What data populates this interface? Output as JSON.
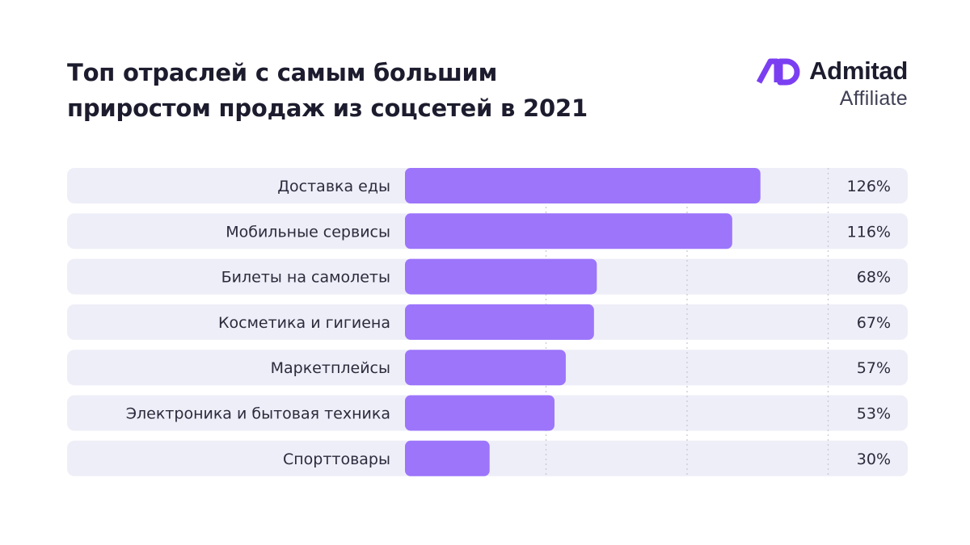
{
  "header": {
    "title_line1": "Топ отраслей с самым большим",
    "title_line2": "приростом продаж из соцсетей в 2021"
  },
  "brand": {
    "name": "Admitad",
    "sub": "Affiliate",
    "logo_color": "#7b3ff2"
  },
  "colors": {
    "bar": "#9c75fb",
    "row_bg": "#eeeef8",
    "grid": "#c9c9d6",
    "text": "#2b2b3d"
  },
  "chart_data": {
    "type": "bar",
    "orientation": "horizontal",
    "title": "Топ отраслей с самым большим приростом продаж из соцсетей в 2021",
    "categories": [
      "Доставка еды",
      "Мобильные сервисы",
      "Билеты на самолеты",
      "Косметика и гигиена",
      "Маркетплейсы",
      "Электроника и бытовая техника",
      "Спорттовары"
    ],
    "values": [
      126,
      116,
      68,
      67,
      57,
      53,
      30
    ],
    "value_labels": [
      "126%",
      "116%",
      "68%",
      "67%",
      "57%",
      "53%",
      "30%"
    ],
    "unit": "%",
    "xlim": [
      0,
      150
    ],
    "grid": true
  }
}
